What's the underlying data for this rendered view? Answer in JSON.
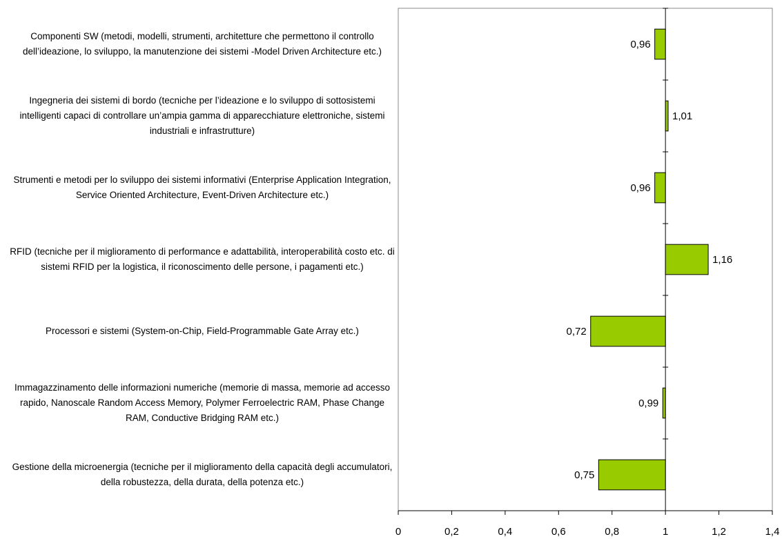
{
  "chart_data": {
    "type": "bar",
    "orientation": "horizontal",
    "categories": [
      "Componenti SW (metodi, modelli, strumenti, architetture che permettono il controllo dell’ideazione, lo sviluppo, la manutenzione dei sistemi -Model Driven Architecture etc.)",
      "Ingegneria dei sistemi di bordo (tecniche per l’ideazione e lo sviluppo di sottosistemi intelligenti capaci di controllare un’ampia gamma di apparecchiature elettroniche, sistemi industriali e infrastrutture)",
      "Strumenti e metodi per lo sviluppo dei sistemi informativi (Enterprise Application Integration, Service Oriented Architecture, Event-Driven Architecture etc.)",
      "RFID (tecniche per il miglioramento di performance e adattabilità, interoperabilità costo etc. di sistemi RFID per la logistica, il riconoscimento delle persone, i pagamenti etc.)",
      "Processori e sistemi (System-on-Chip, Field-Programmable Gate Array etc.)",
      "Immagazzinamento delle informazioni numeriche (memorie di massa, memorie ad accesso rapido, Nanoscale Random Access Memory, Polymer Ferroelectric RAM, Phase Change RAM, Conductive Bridging RAM etc.)",
      "Gestione della microenergia (tecniche per il miglioramento della capacità degli accumulatori, della robustezza, della durata, della potenza etc.)"
    ],
    "values": [
      0.96,
      1.01,
      0.96,
      1.16,
      0.72,
      0.99,
      0.75
    ],
    "value_labels": [
      "0,96",
      "1,01",
      "0,96",
      "1,16",
      "0,72",
      "0,99",
      "0,75"
    ],
    "color": "#99cc00",
    "axis_crossing": 1,
    "xlim": [
      0,
      1.4
    ],
    "xticks": [
      0,
      {
        "value": 0.2,
        "label": "0,2"
      },
      {
        "value": 0.4,
        "label": "0,4"
      },
      {
        "value": 0.6,
        "label": "0,6"
      },
      {
        "value": 0.8,
        "label": "0,8"
      },
      1,
      {
        "value": 1.2,
        "label": "1,2"
      },
      {
        "value": 1.4,
        "label": "1,4"
      }
    ]
  }
}
